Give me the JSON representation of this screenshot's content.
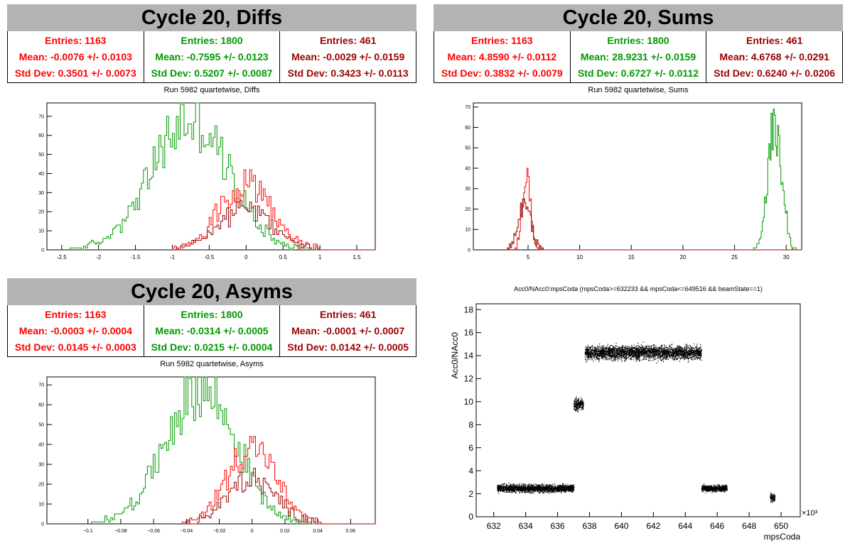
{
  "panels": {
    "diffs": {
      "banner": "Cycle 20, Diffs",
      "stats": [
        {
          "entries": "Entries: 1163",
          "mean": "Mean: -0.0076 +/- 0.0103",
          "std": "Std Dev: 0.3501 +/- 0.0073",
          "color": "#ff0000"
        },
        {
          "entries": "Entries: 1800",
          "mean": "Mean: -0.7595 +/- 0.0123",
          "std": "Std Dev: 0.5207 +/- 0.0087",
          "color": "#009900"
        },
        {
          "entries": "Entries: 461",
          "mean": "Mean: -0.0029 +/- 0.0159",
          "std": "Std Dev: 0.3423 +/- 0.0113",
          "color": "#990000"
        }
      ],
      "plot_title": "Run 5982 quartetwise, Diffs"
    },
    "sums": {
      "banner": "Cycle 20, Sums",
      "stats": [
        {
          "entries": "Entries: 1163",
          "mean": "Mean: 4.8590 +/- 0.0112",
          "std": "Std Dev: 0.3832 +/- 0.0079",
          "color": "#ff0000"
        },
        {
          "entries": "Entries: 1800",
          "mean": "Mean: 28.9231 +/- 0.0159",
          "std": "Std Dev: 0.6727 +/- 0.0112",
          "color": "#009900"
        },
        {
          "entries": "Entries: 461",
          "mean": "Mean: 4.6768 +/- 0.0291",
          "std": "Std Dev: 0.6240 +/- 0.0206",
          "color": "#990000"
        }
      ],
      "plot_title": "Run 5982 quartetwise, Sums"
    },
    "asyms": {
      "banner": "Cycle 20, Asyms",
      "stats": [
        {
          "entries": "Entries: 1163",
          "mean": "Mean: -0.0003 +/- 0.0004",
          "std": "Std Dev: 0.0145 +/- 0.0003",
          "color": "#ff0000"
        },
        {
          "entries": "Entries: 1800",
          "mean": "Mean: -0.0314 +/- 0.0005",
          "std": "Std Dev: 0.0215 +/- 0.0004",
          "color": "#009900"
        },
        {
          "entries": "Entries: 461",
          "mean": "Mean: -0.0001 +/- 0.0007",
          "std": "Std Dev: 0.0142 +/- 0.0005",
          "color": "#990000"
        }
      ],
      "plot_title": "Run 5982 quartetwise, Asyms"
    },
    "scatter": {
      "plot_title": "Acc0/NAcc0:mpsCoda (mpsCoda>=632233 && mpsCoda<=649516 && beamState==1)"
    }
  },
  "chart_data": [
    {
      "type": "histogram",
      "xlim": [
        -2.7,
        1.75
      ],
      "ylim": [
        0,
        77
      ],
      "xticks": [
        -2.5,
        -2,
        -1.5,
        -1,
        -0.5,
        0,
        0.5,
        1,
        1.5
      ],
      "xtick_labels": [
        "-2.5",
        "-2",
        "-1.5",
        "-1",
        "-0.5",
        "0",
        "0.5",
        "1",
        "1.5"
      ],
      "yticks": [
        0,
        10,
        20,
        30,
        40,
        50,
        60,
        70
      ],
      "ytick_labels": [
        "0",
        "10",
        "20",
        "30",
        "40",
        "50",
        "60",
        "70"
      ],
      "series": [
        {
          "color": "#009900",
          "entries": 1800,
          "mean": -0.7595,
          "std": 0.5207
        },
        {
          "color": "#ff0000",
          "entries": 1163,
          "mean": -0.0076,
          "std": 0.3501
        },
        {
          "color": "#990000",
          "entries": 461,
          "mean": -0.0029,
          "std": 0.3423
        }
      ]
    },
    {
      "type": "histogram",
      "xlim": [
        -0.3,
        31.5
      ],
      "ylim": [
        0,
        72
      ],
      "xticks": [
        5,
        10,
        15,
        20,
        25,
        30
      ],
      "xtick_labels": [
        "5",
        "10",
        "15",
        "20",
        "25",
        "30"
      ],
      "yticks": [
        0,
        10,
        20,
        30,
        40,
        50,
        60,
        70
      ],
      "ytick_labels": [
        "0",
        "10",
        "20",
        "30",
        "40",
        "50",
        "60",
        "70"
      ],
      "series": [
        {
          "color": "#009900",
          "entries": 1800,
          "mean": 28.9231,
          "std": 0.6727
        },
        {
          "color": "#ff0000",
          "entries": 1163,
          "mean": 4.859,
          "std": 0.3832
        },
        {
          "color": "#990000",
          "entries": 461,
          "mean": 4.6768,
          "std": 0.624
        }
      ]
    },
    {
      "type": "histogram",
      "xlim": [
        -0.125,
        0.075
      ],
      "ylim": [
        0,
        74
      ],
      "xticks": [
        -0.1,
        -0.08,
        -0.06,
        -0.04,
        -0.02,
        0,
        0.02,
        0.04,
        0.06
      ],
      "xtick_labels": [
        "−0.1",
        "−0.08",
        "−0.06",
        "−0.04",
        "−0.02",
        "0",
        "0.02",
        "0.04",
        "0.06"
      ],
      "yticks": [
        0,
        10,
        20,
        30,
        40,
        50,
        60,
        70
      ],
      "ytick_labels": [
        "0",
        "10",
        "20",
        "30",
        "40",
        "50",
        "60",
        "70"
      ],
      "series": [
        {
          "color": "#009900",
          "entries": 1800,
          "mean": -0.0314,
          "std": 0.0215
        },
        {
          "color": "#ff0000",
          "entries": 1163,
          "mean": -0.0003,
          "std": 0.0145
        },
        {
          "color": "#990000",
          "entries": 461,
          "mean": -0.0001,
          "std": 0.0142
        }
      ]
    },
    {
      "type": "scatter",
      "title": "Acc0/NAcc0:mpsCoda (mpsCoda>=632233 && mpsCoda<=649516 && beamState==1)",
      "xlabel": "mpsCoda",
      "ylabel": "Acc0/NAcc0",
      "x_multiplier": "×10³",
      "xlim": [
        630.9,
        651.2
      ],
      "ylim": [
        0,
        18.5
      ],
      "xticks": [
        632,
        634,
        636,
        638,
        640,
        642,
        644,
        646,
        648,
        650
      ],
      "xtick_labels": [
        "632",
        "634",
        "636",
        "638",
        "640",
        "642",
        "644",
        "646",
        "648",
        "650"
      ],
      "yticks": [
        0,
        2,
        4,
        6,
        8,
        10,
        12,
        14,
        16,
        18
      ],
      "ytick_labels": [
        "0",
        "2",
        "4",
        "6",
        "8",
        "10",
        "12",
        "14",
        "16",
        "18"
      ],
      "color": "#000000",
      "clusters": [
        {
          "x": [
            632.2,
            637.0
          ],
          "y": 2.5,
          "spread": 0.5
        },
        {
          "x": [
            637.0,
            637.6
          ],
          "y": 9.8,
          "spread": 0.8
        },
        {
          "x": [
            637.7,
            645.0
          ],
          "y": 14.3,
          "spread": 0.9
        },
        {
          "x": [
            645.0,
            646.6
          ],
          "y": 2.5,
          "spread": 0.4
        },
        {
          "x": [
            649.3,
            649.6
          ],
          "y": 1.7,
          "spread": 0.5
        }
      ]
    }
  ]
}
